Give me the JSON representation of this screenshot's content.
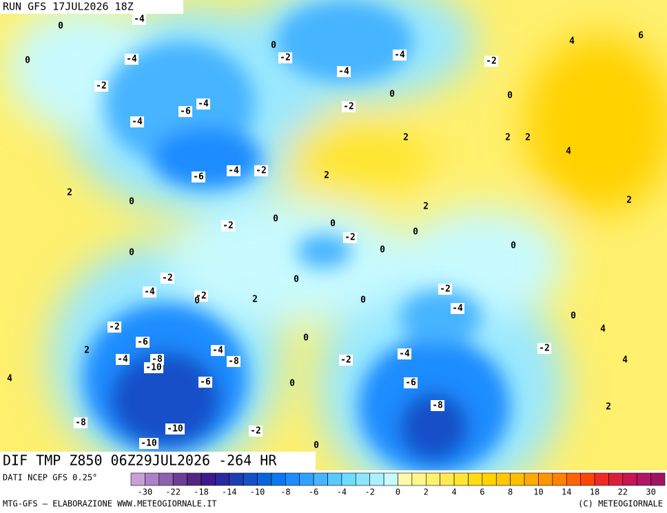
{
  "header": {
    "run": "RUN GFS 17JUL2026 18Z"
  },
  "footer": {
    "title": "DIF TMP Z850 06Z29JUL2026 -264 HR",
    "source": "DATI NCEP GFS 0.25°",
    "credit": "MTG-GFS — ELABORAZIONE WWW.METEOGIORNALE.IT",
    "copyright": "(C) METEOGIORNALE"
  },
  "colorbar": {
    "labels": [
      "-30",
      "-22",
      "-18",
      "-14",
      "-10",
      "-8",
      "-6",
      "-4",
      "-2",
      "0",
      "2",
      "4",
      "6",
      "8",
      "10",
      "14",
      "18",
      "22",
      "30"
    ]
  },
  "contour_labels": [
    "-4",
    "0",
    "0",
    "-4",
    "-2",
    "-6",
    "-4",
    "-4",
    "0",
    "-2",
    "-4",
    "-4",
    "-2",
    "0",
    "0",
    "-2",
    "4",
    "6",
    "2",
    "2",
    "2",
    "4",
    "-4",
    "-2",
    "-6",
    "2",
    "2",
    "0",
    "2",
    "2",
    "-2",
    "0",
    "0",
    "-2",
    "0",
    "0",
    "0",
    "0",
    "-2",
    "0",
    "-4",
    "-2",
    "0",
    "2",
    "0",
    "-2",
    "-4",
    "0",
    "-2",
    "4",
    "-6",
    "0",
    "2",
    "-4",
    "-2",
    "-4",
    "-8",
    "-10",
    "-8",
    "-2",
    "-4",
    "4",
    "4",
    "-6",
    "0",
    "-6",
    "2",
    "-8",
    "-8",
    "-10",
    "-2",
    "-10",
    "0"
  ]
}
